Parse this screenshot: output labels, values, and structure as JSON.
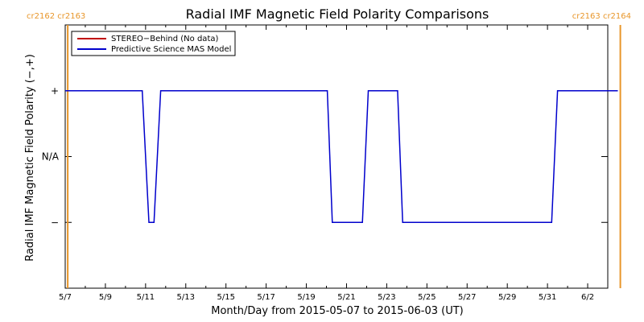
{
  "chart_data": {
    "type": "line",
    "title": "Radial IMF Magnetic Field Polarity Comparisons",
    "xlabel": "Month/Day from 2015-05-07 to 2015-06-03 (UT)",
    "ylabel": "Radial IMF Magnetic Field Polarity (−,+)",
    "x_ticks": [
      "5/7",
      "5/9",
      "5/11",
      "5/13",
      "5/15",
      "5/17",
      "5/19",
      "5/21",
      "5/23",
      "5/25",
      "5/27",
      "5/29",
      "5/31",
      "6/2"
    ],
    "y_ticks": [
      "+",
      "N/A",
      "−"
    ],
    "ylim": [
      -2,
      2
    ],
    "xlim": [
      "2015-05-07",
      "2015-06-03"
    ],
    "carrington": {
      "color": "#e8962a",
      "left_label": "cr2162 cr2163",
      "right_label": "cr2163 cr2164",
      "left_x": "2015-05-07T03:00",
      "right_x": "2015-06-03T15:00"
    },
    "legend": {
      "placement": "top-left",
      "entries": [
        {
          "name": "STEREO−Behind (No data)",
          "color": "#c00000"
        },
        {
          "name": "Predictive Science MAS Model",
          "color": "#0000cc"
        }
      ]
    },
    "series": [
      {
        "name": "Predictive Science MAS Model",
        "color": "#0000cc",
        "points": [
          [
            "2015-05-07T00:00",
            1
          ],
          [
            "2015-05-10T20:00",
            1
          ],
          [
            "2015-05-11T04:00",
            -1
          ],
          [
            "2015-05-11T10:00",
            -1
          ],
          [
            "2015-05-11T18:00",
            1
          ],
          [
            "2015-05-20T01:00",
            1
          ],
          [
            "2015-05-20T07:00",
            -1
          ],
          [
            "2015-05-21T19:00",
            -1
          ],
          [
            "2015-05-22T02:00",
            1
          ],
          [
            "2015-05-23T13:00",
            1
          ],
          [
            "2015-05-23T19:00",
            -1
          ],
          [
            "2015-05-31T05:00",
            -1
          ],
          [
            "2015-05-31T12:00",
            1
          ],
          [
            "2015-06-03T12:00",
            1
          ]
        ]
      }
    ]
  }
}
